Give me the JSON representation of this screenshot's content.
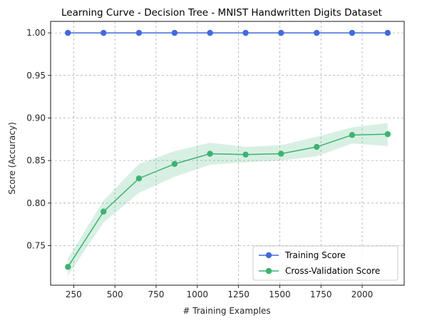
{
  "chart_data": {
    "type": "line",
    "title": "Learning Curve - Decision Tree - MNIST Handwritten Digits Dataset",
    "xlabel": "# Training Examples",
    "ylabel": "Score (Accuracy)",
    "xlim": [
      110,
      2255
    ],
    "ylim": [
      0.7035,
      1.0135
    ],
    "xticks": [
      250,
      500,
      750,
      1000,
      1250,
      1500,
      1750,
      2000
    ],
    "yticks": [
      0.75,
      0.8,
      0.85,
      0.9,
      0.95,
      1.0
    ],
    "xtick_labels": [
      "250",
      "500",
      "750",
      "1000",
      "1250",
      "1500",
      "1750",
      "2000"
    ],
    "ytick_labels": [
      "0.75",
      "0.80",
      "0.85",
      "0.90",
      "0.95",
      "1.00"
    ],
    "grid": true,
    "legend_position": "lower-right",
    "x": [
      215,
      431,
      646,
      862,
      1077,
      1293,
      1508,
      1724,
      1939,
      2155
    ],
    "series": [
      {
        "name": "Training Score",
        "color": "#4169e1",
        "values": [
          1.0,
          1.0,
          1.0,
          1.0,
          1.0,
          1.0,
          1.0,
          1.0,
          1.0,
          1.0
        ],
        "band_upper": [
          1.0,
          1.0,
          1.0,
          1.0,
          1.0,
          1.0,
          1.0,
          1.0,
          1.0,
          1.0
        ],
        "band_lower": [
          1.0,
          1.0,
          1.0,
          1.0,
          1.0,
          1.0,
          1.0,
          1.0,
          1.0,
          1.0
        ]
      },
      {
        "name": "Cross-Validation Score",
        "color": "#3cb371",
        "values": [
          0.725,
          0.79,
          0.829,
          0.846,
          0.858,
          0.857,
          0.858,
          0.866,
          0.88,
          0.881
        ],
        "band_upper": [
          0.735,
          0.803,
          0.846,
          0.861,
          0.871,
          0.866,
          0.868,
          0.878,
          0.889,
          0.894
        ],
        "band_lower": [
          0.715,
          0.777,
          0.812,
          0.831,
          0.845,
          0.848,
          0.85,
          0.855,
          0.87,
          0.867
        ]
      }
    ]
  }
}
